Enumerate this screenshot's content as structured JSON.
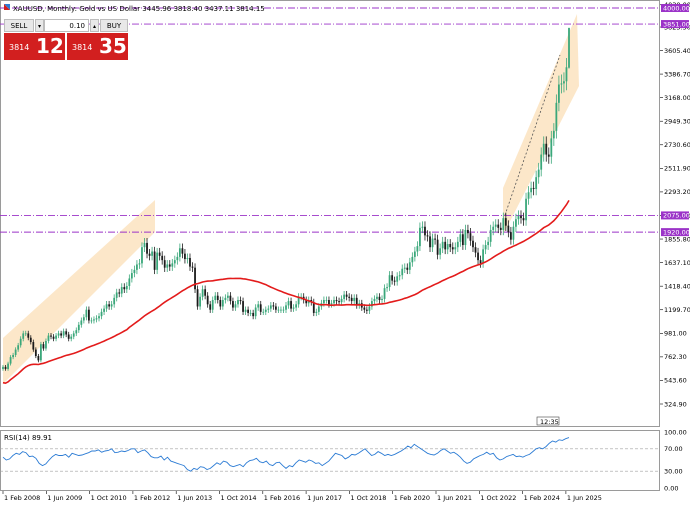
{
  "header": {
    "title": "XAUUSD, Monthly: Gold vs US Dollar  3445.96  3818.40  3437.11  3814.15"
  },
  "trade_panel": {
    "sell_label": "SELL",
    "buy_label": "BUY",
    "volume_value": "0.10",
    "sell_price_small": "3814",
    "sell_price_large": "12",
    "buy_price_small": "3814",
    "buy_price_large": "35"
  },
  "colors": {
    "bull": "#3aa77a",
    "bear": "#1b1b1b",
    "ma": "#e31b1b",
    "rsi": "#2b7bd4",
    "levels": "#9b33c8",
    "channel": "#fbe3c0",
    "trade_red": "#d21f1f"
  },
  "price_axis": {
    "ticks": [
      "4030.00",
      "3823.50",
      "3605.40",
      "3386.70",
      "3168.00",
      "2949.30",
      "2730.60",
      "2511.90",
      "2293.20",
      "2074.50",
      "1855.80",
      "1637.10",
      "1418.40",
      "1199.70",
      "981.00",
      "762.30",
      "543.60",
      "324.90"
    ],
    "level_labels": [
      "4000.00",
      "3851.00",
      "2075.00",
      "1920.00"
    ]
  },
  "time_axis": {
    "labels": [
      "1 Feb 2008",
      "1 Jun 2009",
      "1 Oct 2010",
      "1 Feb 2012",
      "1 Jun 2013",
      "1 Oct 2014",
      "1 Feb 2016",
      "1 Jun 2017",
      "1 Oct 2018",
      "1 Feb 2020",
      "1 Jun 2021",
      "1 Oct 2022",
      "1 Feb 2024",
      "1 Jun 2025"
    ]
  },
  "countdown": "12:35",
  "rsi": {
    "label": "RSI(14) 89.91",
    "ticks": [
      "100.00",
      "70.00",
      "30.00",
      "0.00"
    ]
  },
  "chart_data": {
    "type": "candlestick",
    "title": "XAUUSD, Monthly: Gold vs US Dollar",
    "x_start": "2007-07",
    "interval": "monthly",
    "last_bar": {
      "open": 3445.96,
      "high": 3818.4,
      "low": 3437.11,
      "close": 3814.15
    },
    "horizontal_levels": [
      4000.0,
      3851.0,
      2075.0,
      1920.0
    ],
    "y_range": [
      100,
      4100
    ],
    "close_series": [
      670,
      650,
      700,
      760,
      780,
      830,
      870,
      930,
      980,
      980,
      940,
      900,
      830,
      770,
      730,
      880,
      840,
      910,
      960,
      950,
      930,
      960,
      980,
      960,
      1000,
      970,
      930,
      950,
      980,
      1010,
      1060,
      1100,
      1130,
      1200,
      1100,
      1100,
      1110,
      1120,
      1140,
      1180,
      1210,
      1250,
      1230,
      1250,
      1310,
      1360,
      1350,
      1410,
      1390,
      1420,
      1490,
      1540,
      1570,
      1620,
      1630,
      1780,
      1820,
      1720,
      1700,
      1740,
      1570,
      1730,
      1700,
      1660,
      1590,
      1620,
      1600,
      1630,
      1660,
      1690,
      1770,
      1720,
      1670,
      1680,
      1600,
      1590,
      1390,
      1230,
      1320,
      1390,
      1330,
      1250,
      1200,
      1290,
      1330,
      1290,
      1230,
      1290,
      1310,
      1330,
      1280,
      1220,
      1250,
      1290,
      1280,
      1180,
      1200,
      1170,
      1170,
      1140,
      1220,
      1250,
      1180,
      1180,
      1200,
      1210,
      1240,
      1230,
      1200,
      1200,
      1200,
      1200,
      1240,
      1280,
      1210,
      1220,
      1250,
      1320,
      1320,
      1290,
      1260,
      1290,
      1270,
      1170,
      1180,
      1230,
      1260,
      1290,
      1290,
      1250,
      1260,
      1290,
      1280,
      1270,
      1300,
      1340,
      1320,
      1310,
      1280,
      1310,
      1240,
      1260,
      1220,
      1200,
      1190,
      1230,
      1280,
      1300,
      1320,
      1290,
      1300,
      1400,
      1410,
      1520,
      1470,
      1460,
      1510,
      1520,
      1580,
      1590,
      1570,
      1640,
      1690,
      1740,
      1790,
      1960,
      1970,
      1890,
      1880,
      1780,
      1860,
      1850,
      1710,
      1770,
      1830,
      1760,
      1810,
      1780,
      1760,
      1780,
      1830,
      1900,
      1800,
      1940,
      1910,
      1840,
      1780,
      1730,
      1660,
      1630,
      1760,
      1800,
      1830,
      1940,
      1970,
      1990,
      1960,
      1940,
      2050,
      1980,
      1920,
      1850,
      1970,
      2040,
      2070,
      2050,
      2030,
      2230,
      2290,
      2330,
      2320,
      2430,
      2500,
      2640,
      2740,
      2640,
      2620,
      2790,
      2860,
      3120,
      3290,
      3300,
      3320,
      3450,
      3810
    ],
    "moving_average": {
      "period": 50
    },
    "rsi_series": [
      55,
      50,
      52,
      58,
      62,
      60,
      65,
      63,
      56,
      57,
      53,
      44,
      40,
      43,
      50,
      56,
      60,
      58,
      58,
      60,
      55,
      62,
      60,
      58,
      59,
      61,
      63,
      66,
      66,
      68,
      64,
      66,
      67,
      70,
      63,
      64,
      66,
      65,
      67,
      70,
      70,
      63,
      66,
      68,
      63,
      56,
      54,
      54,
      57,
      50,
      55,
      48,
      46,
      44,
      42,
      40,
      33,
      30,
      35,
      33,
      38,
      37,
      33,
      35,
      40,
      45,
      42,
      48,
      46,
      40,
      38,
      40,
      42,
      38,
      45,
      49,
      50,
      53,
      47,
      45,
      48,
      42,
      40,
      45,
      46,
      40,
      35,
      40,
      38,
      45,
      50,
      48,
      46,
      50,
      48,
      44,
      45,
      40,
      44,
      48,
      55,
      62,
      60,
      58,
      52,
      55,
      60,
      59,
      62,
      66,
      70,
      64,
      58,
      60,
      65,
      62,
      58,
      60,
      58,
      60,
      63,
      66,
      70,
      75,
      72,
      78,
      74,
      70,
      66,
      62,
      60,
      59,
      62,
      67,
      70,
      66,
      62,
      64,
      60,
      55,
      48,
      44,
      46,
      52,
      55,
      58,
      60,
      64,
      60,
      62,
      54,
      50,
      52,
      56,
      58,
      60,
      56,
      57,
      55,
      58,
      60,
      65,
      70,
      72,
      70,
      74,
      80,
      84,
      82,
      86,
      85,
      88,
      90
    ]
  }
}
